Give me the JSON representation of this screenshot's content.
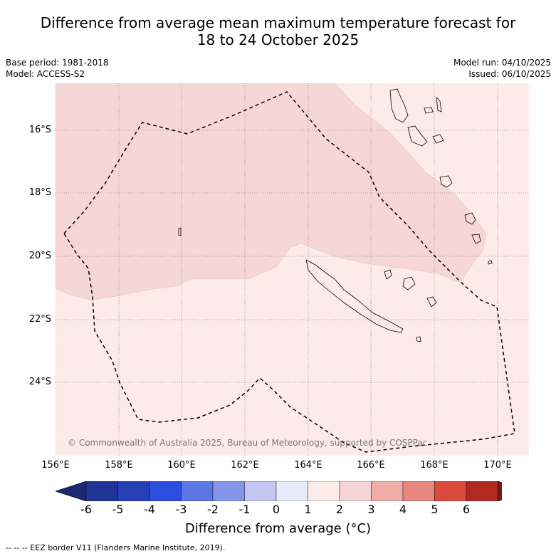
{
  "title_line1": "Difference from average mean maximum temperature forecast for",
  "title_line2": "18 to 24 October 2025",
  "base_period": "Base period: 1981-2018",
  "model": "Model: ACCESS-S2",
  "model_run": "Model run: 04/10/2025",
  "issued": "Issued: 06/10/2025",
  "copyright": "© Commonwealth of Australia 2025, Bureau of Meteorology, supported by COSPPac",
  "latitude_labels": [
    "16°S",
    "18°S",
    "20°S",
    "22°S",
    "24°S"
  ],
  "longitude_labels": [
    "156°E",
    "158°E",
    "160°E",
    "162°E",
    "164°E",
    "166°E",
    "168°E",
    "170°E"
  ],
  "colorbar": {
    "ticks": [
      "-6",
      "-5",
      "-4",
      "-3",
      "-2",
      "-1",
      "0",
      "1",
      "2",
      "3",
      "4",
      "5",
      "6"
    ],
    "colors": [
      "#1f3494",
      "#2440b4",
      "#2e4de0",
      "#5c76e6",
      "#8595e9",
      "#c2c8f2",
      "#e8ebfa",
      "#fdebe8",
      "#f5d4d4",
      "#f0ada8",
      "#e88780",
      "#dc4a3c",
      "#b02a22"
    ],
    "under_color": "#1b2a6e",
    "over_color": "#7a1a14",
    "label": "Difference from average (°C)"
  },
  "anomaly_regions": [
    {
      "category": "1 to 2",
      "color": "#f5d7d6"
    },
    {
      "category": "0 to 1",
      "color": "#fcebe9"
    }
  ],
  "footer": "-- -- -- EEZ border V11 (Flanders Marine Institute, 2019)."
}
